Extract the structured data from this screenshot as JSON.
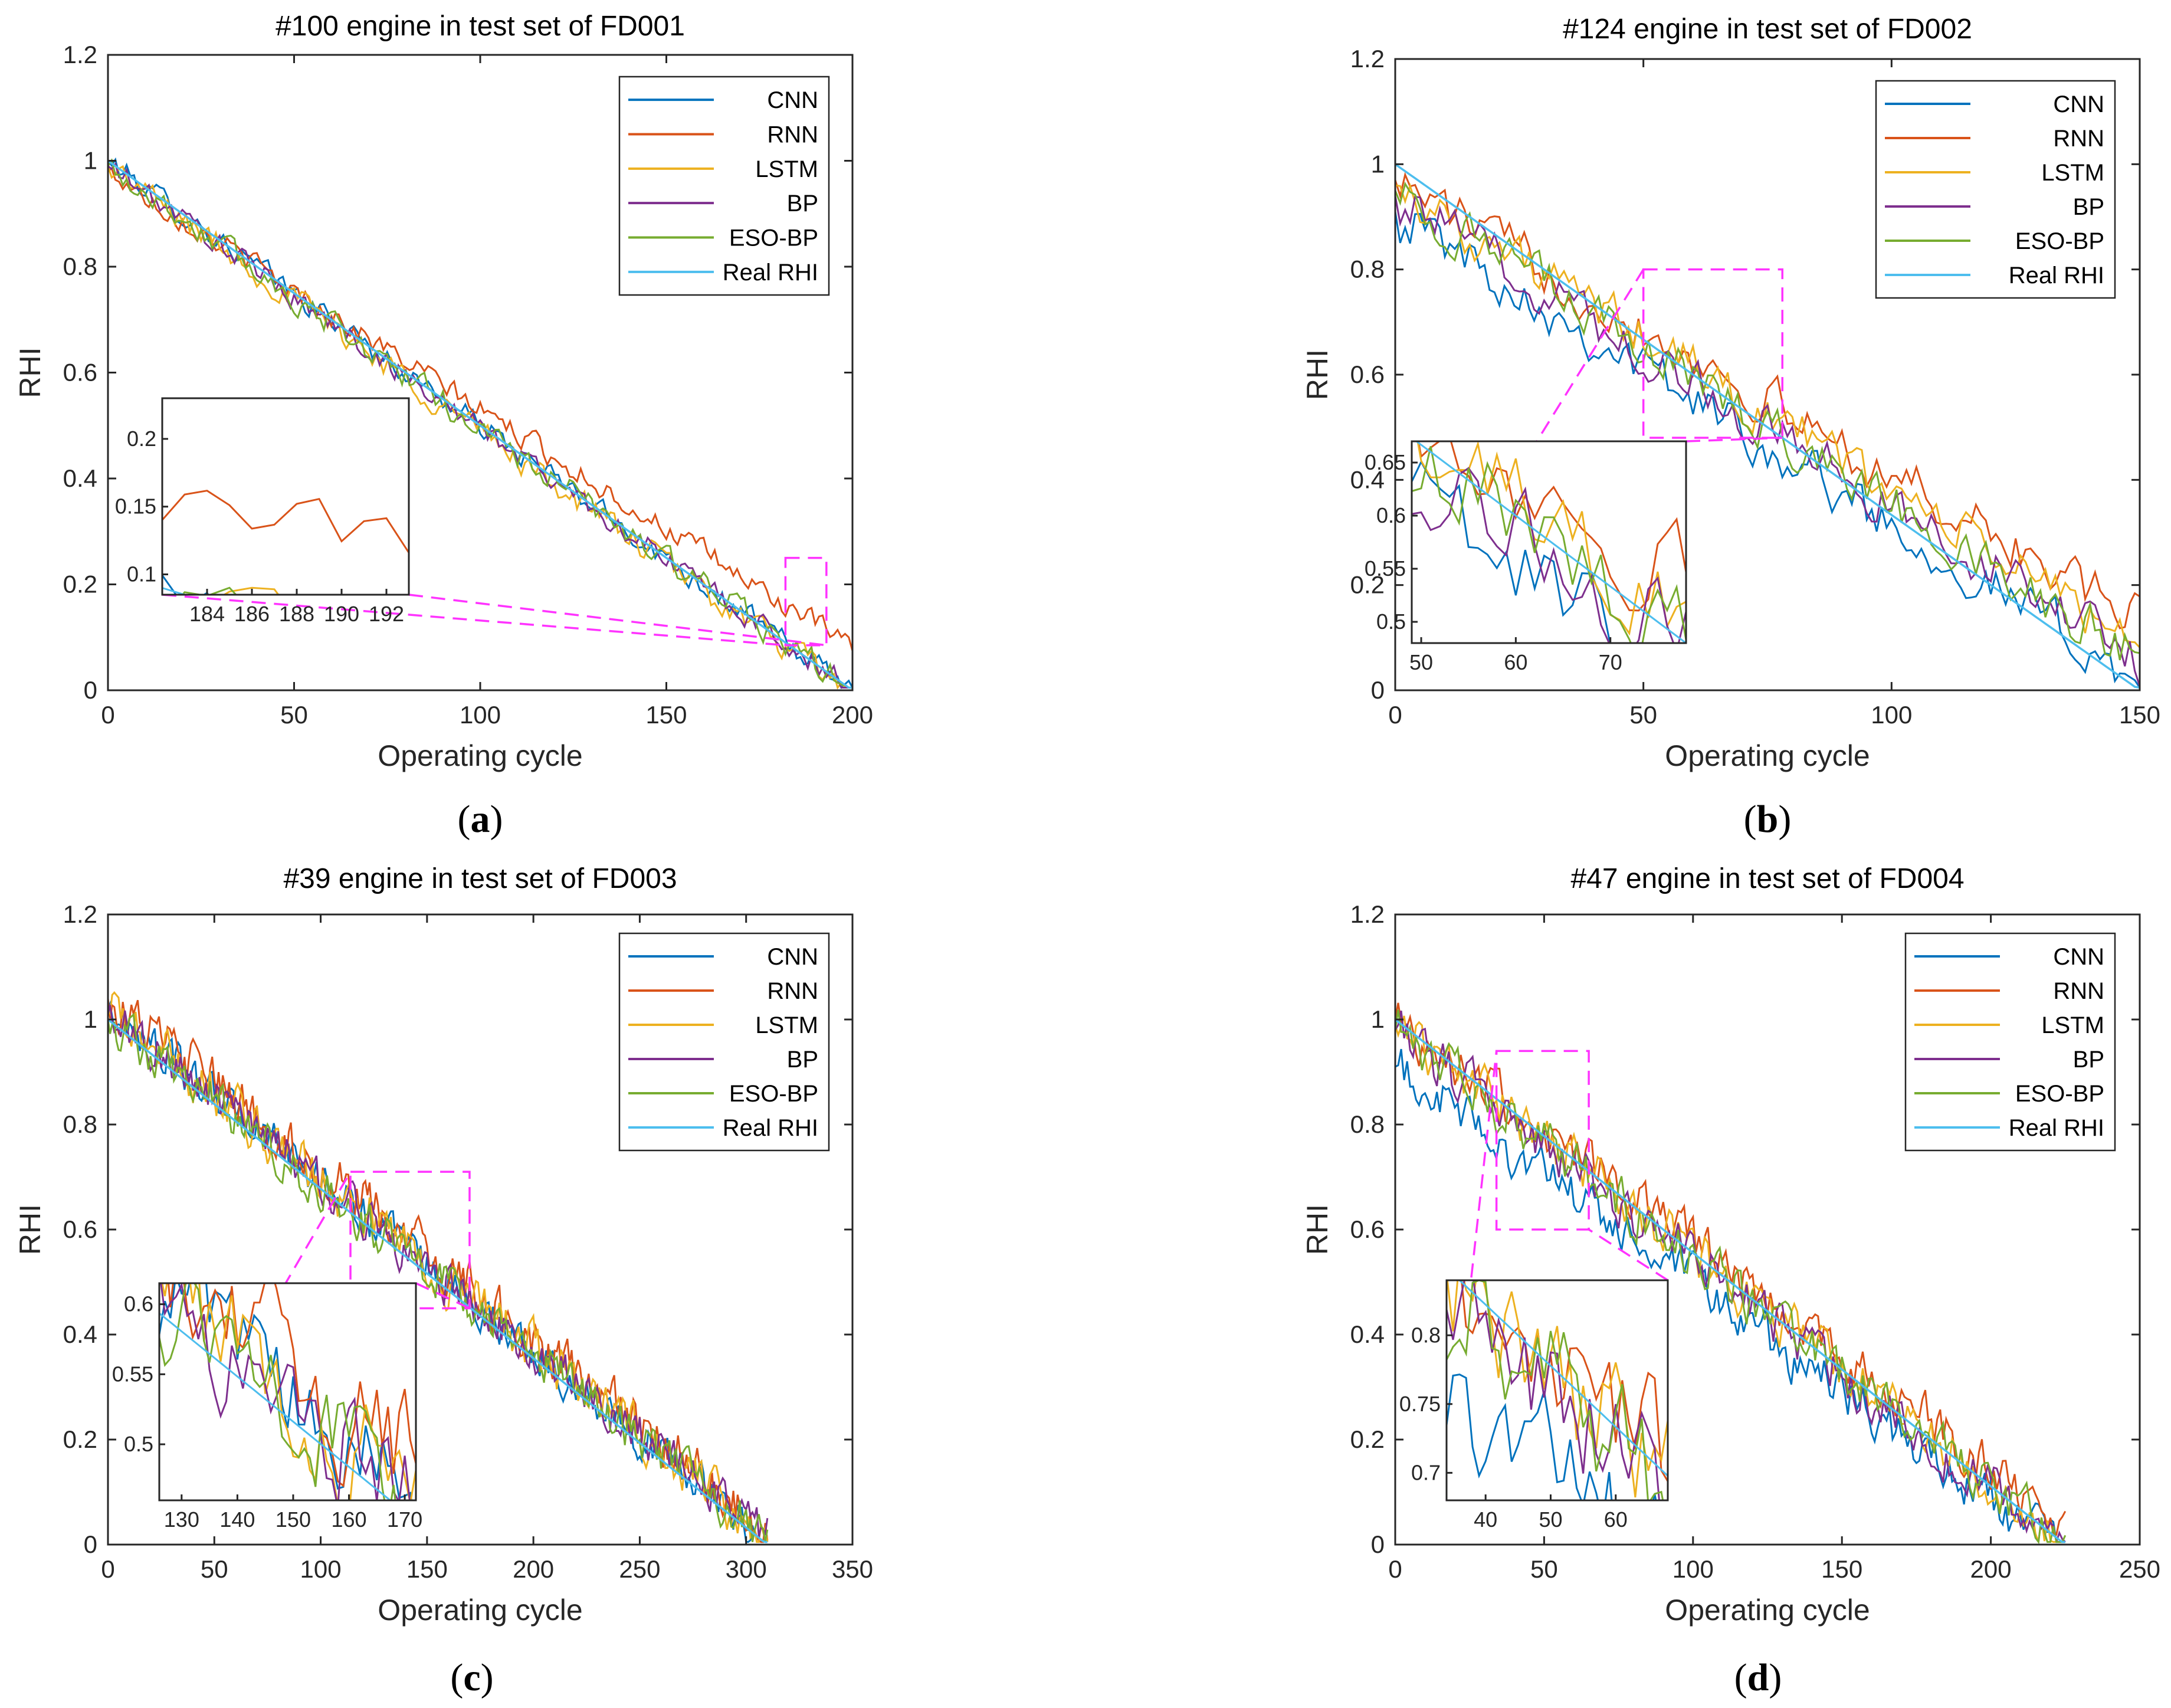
{
  "chart_data": [
    {
      "type": "line",
      "panel": "a",
      "caption_letter": "a",
      "title": "#100 engine in test set of FD001",
      "xlabel": "Operating cycle",
      "ylabel": "RHI",
      "xlim": [
        0,
        200
      ],
      "ylim": [
        0,
        1.2
      ],
      "xticks": [
        0,
        50,
        100,
        150,
        200
      ],
      "yticks": [
        0,
        0.2,
        0.4,
        0.6,
        0.8,
        1,
        1.2
      ],
      "n_cycles": 200,
      "legend": [
        "CNN",
        "RNN",
        "LSTM",
        "BP",
        "ESO-BP",
        "Real RHI"
      ],
      "legend_position": "top-right",
      "series": [
        {
          "name": "CNN",
          "color": "#0072bd",
          "offset_start": 0.0,
          "offset_end": 0.0,
          "noise": 0.012
        },
        {
          "name": "RNN",
          "color": "#d95319",
          "offset_start": -0.02,
          "offset_end": 0.08,
          "noise": 0.012
        },
        {
          "name": "LSTM",
          "color": "#edb120",
          "offset_start": -0.01,
          "offset_end": -0.01,
          "noise": 0.014
        },
        {
          "name": "BP",
          "color": "#7e2f8e",
          "offset_start": -0.01,
          "offset_end": 0.0,
          "noise": 0.012
        },
        {
          "name": "ESO-BP",
          "color": "#77ac30",
          "offset_start": -0.01,
          "offset_end": 0.0,
          "noise": 0.014
        },
        {
          "name": "Real RHI",
          "color": "#4dbeee",
          "offset_start": 0.0,
          "offset_end": 0.0,
          "noise": 0.0
        }
      ],
      "zoom_region": {
        "x": [
          182,
          193
        ],
        "y": [
          0.085,
          0.25
        ]
      },
      "inset": {
        "xlim": [
          182,
          193
        ],
        "ylim": [
          0.085,
          0.23
        ],
        "xticks": [
          184,
          186,
          188,
          190,
          192
        ],
        "yticks": [
          0.1,
          0.15,
          0.2
        ]
      }
    },
    {
      "type": "line",
      "panel": "b",
      "caption_letter": "b",
      "title": "#124 engine in test set of FD002",
      "xlabel": "Operating cycle",
      "ylabel": "RHI",
      "xlim": [
        0,
        150
      ],
      "ylim": [
        0,
        1.2
      ],
      "xticks": [
        0,
        50,
        100,
        150
      ],
      "yticks": [
        0,
        0.2,
        0.4,
        0.6,
        0.8,
        1,
        1.2
      ],
      "n_cycles": 150,
      "legend": [
        "CNN",
        "RNN",
        "LSTM",
        "BP",
        "ESO-BP",
        "Real RHI"
      ],
      "legend_position": "top-right",
      "series": [
        {
          "name": "CNN",
          "color": "#0072bd",
          "offset_start": -0.09,
          "offset_end": 0.02,
          "noise": 0.025
        },
        {
          "name": "RNN",
          "color": "#d95319",
          "offset_start": -0.03,
          "offset_end": 0.13,
          "noise": 0.025
        },
        {
          "name": "LSTM",
          "color": "#edb120",
          "offset_start": -0.04,
          "offset_end": 0.09,
          "noise": 0.025
        },
        {
          "name": "BP",
          "color": "#7e2f8e",
          "offset_start": -0.06,
          "offset_end": 0.06,
          "noise": 0.025
        },
        {
          "name": "ESO-BP",
          "color": "#77ac30",
          "offset_start": -0.05,
          "offset_end": 0.06,
          "noise": 0.025
        },
        {
          "name": "Real RHI",
          "color": "#4dbeee",
          "offset_start": 0.0,
          "offset_end": 0.0,
          "noise": 0.0
        }
      ],
      "zoom_region": {
        "x": [
          50,
          78
        ],
        "y": [
          0.48,
          0.8
        ]
      },
      "inset": {
        "xlim": [
          49,
          78
        ],
        "ylim": [
          0.48,
          0.67
        ],
        "xticks": [
          50,
          60,
          70
        ],
        "yticks": [
          0.5,
          0.55,
          0.6,
          0.65
        ]
      }
    },
    {
      "type": "line",
      "panel": "c",
      "caption_letter": "c",
      "title": "#39 engine in test set of FD003",
      "xlabel": "Operating cycle",
      "ylabel": "RHI",
      "xlim": [
        0,
        350
      ],
      "ylim": [
        0,
        1.2
      ],
      "xticks": [
        0,
        50,
        100,
        150,
        200,
        250,
        300,
        350
      ],
      "yticks": [
        0,
        0.2,
        0.4,
        0.6,
        0.8,
        1,
        1.2
      ],
      "n_cycles": 310,
      "legend": [
        "CNN",
        "RNN",
        "LSTM",
        "BP",
        "ESO-BP",
        "Real RHI"
      ],
      "legend_position": "top-right",
      "series": [
        {
          "name": "CNN",
          "color": "#0072bd",
          "offset_start": 0.02,
          "offset_end": 0.01,
          "noise": 0.02
        },
        {
          "name": "RNN",
          "color": "#d95319",
          "offset_start": 0.04,
          "offset_end": 0.03,
          "noise": 0.025
        },
        {
          "name": "LSTM",
          "color": "#edb120",
          "offset_start": 0.02,
          "offset_end": 0.02,
          "noise": 0.025
        },
        {
          "name": "BP",
          "color": "#7e2f8e",
          "offset_start": 0.01,
          "offset_end": 0.02,
          "noise": 0.022
        },
        {
          "name": "ESO-BP",
          "color": "#77ac30",
          "offset_start": 0.0,
          "offset_end": 0.01,
          "noise": 0.022
        },
        {
          "name": "Real RHI",
          "color": "#4dbeee",
          "offset_start": 0.0,
          "offset_end": 0.0,
          "noise": 0.0
        }
      ],
      "zoom_region": {
        "x": [
          114,
          170
        ],
        "y": [
          0.45,
          0.71
        ]
      },
      "inset": {
        "xlim": [
          126,
          172
        ],
        "ylim": [
          0.46,
          0.615
        ],
        "xticks": [
          130,
          140,
          150,
          160,
          170
        ],
        "yticks": [
          0.5,
          0.55,
          0.6
        ]
      }
    },
    {
      "type": "line",
      "panel": "d",
      "caption_letter": "d",
      "title": "#47 engine in test set of FD004",
      "xlabel": "Operating cycle",
      "ylabel": "RHI",
      "xlim": [
        0,
        250
      ],
      "ylim": [
        0,
        1.2
      ],
      "xticks": [
        0,
        50,
        100,
        150,
        200,
        250
      ],
      "yticks": [
        0,
        0.2,
        0.4,
        0.6,
        0.8,
        1,
        1.2
      ],
      "n_cycles": 225,
      "legend": [
        "CNN",
        "RNN",
        "LSTM",
        "BP",
        "ESO-BP",
        "Real RHI"
      ],
      "legend_position": "top-right",
      "series": [
        {
          "name": "CNN",
          "color": "#0072bd",
          "offset_start": -0.09,
          "offset_end": -0.02,
          "noise": 0.025
        },
        {
          "name": "RNN",
          "color": "#d95319",
          "offset_start": 0.0,
          "offset_end": 0.04,
          "noise": 0.025
        },
        {
          "name": "LSTM",
          "color": "#edb120",
          "offset_start": -0.01,
          "offset_end": 0.01,
          "noise": 0.025
        },
        {
          "name": "BP",
          "color": "#7e2f8e",
          "offset_start": -0.02,
          "offset_end": 0.0,
          "noise": 0.025
        },
        {
          "name": "ESO-BP",
          "color": "#77ac30",
          "offset_start": -0.02,
          "offset_end": 0.0,
          "noise": 0.025
        },
        {
          "name": "Real RHI",
          "color": "#4dbeee",
          "offset_start": 0.0,
          "offset_end": 0.0,
          "noise": 0.0
        }
      ],
      "zoom_region": {
        "x": [
          34,
          65
        ],
        "y": [
          0.6,
          0.94
        ]
      },
      "inset": {
        "xlim": [
          34,
          68
        ],
        "ylim": [
          0.68,
          0.84
        ],
        "xticks": [
          40,
          50,
          60
        ],
        "yticks": [
          0.7,
          0.75,
          0.8
        ]
      }
    }
  ]
}
